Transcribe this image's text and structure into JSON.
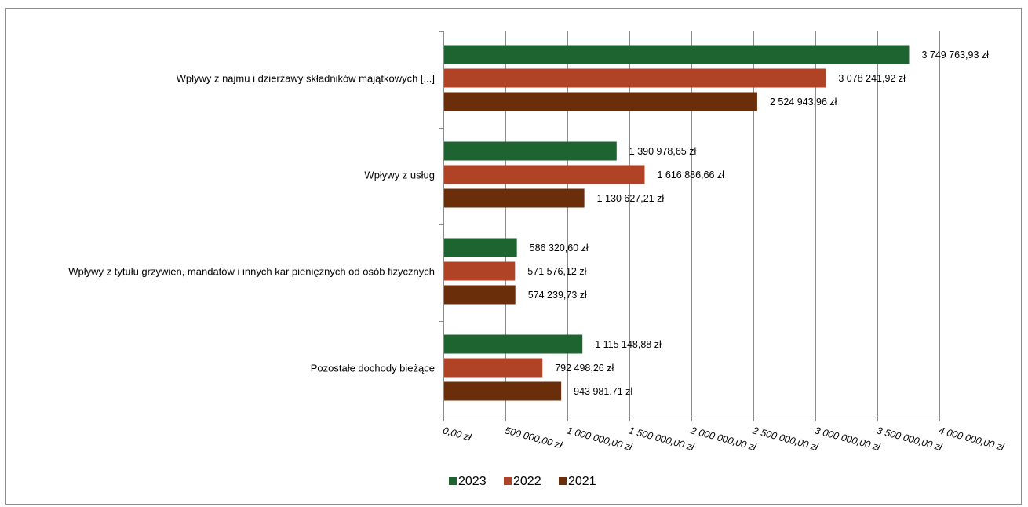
{
  "chart_data": {
    "type": "bar",
    "orientation": "horizontal",
    "title": "",
    "xlabel": "",
    "ylabel": "",
    "categories": [
      "Wpływy z najmu i dzierżawy składników majątkowych [...]",
      "Wpływy z usług",
      "Wpływy z tytułu grzywien, mandatów i innych kar pieniężnych od osób fizycznych",
      "Pozostałe dochody bieżące"
    ],
    "series": [
      {
        "name": "2023",
        "color": "#1e6430",
        "values": [
          3749763.93,
          1390978.65,
          586320.6,
          1115148.88
        ],
        "labels": [
          "3 749 763,93 zł",
          "1 390 978,65 zł",
          "586 320,60 zł",
          "1 115 148,88 zł"
        ]
      },
      {
        "name": "2022",
        "color": "#b04325",
        "values": [
          3078241.92,
          1616886.66,
          571576.12,
          792498.26
        ],
        "labels": [
          "3 078 241,92 zł",
          "1 616 886,66 zł",
          "571 576,12 zł",
          "792 498,26 zł"
        ]
      },
      {
        "name": "2021",
        "color": "#6a2f0a",
        "values": [
          2524943.96,
          1130627.21,
          574239.73,
          943981.71
        ],
        "labels": [
          "2 524 943,96 zł",
          "1 130 627,21 zł",
          "574 239,73 zł",
          "943 981,71 zł"
        ]
      }
    ],
    "xlim": [
      0,
      4000000
    ],
    "xticks": [
      0,
      500000,
      1000000,
      1500000,
      2000000,
      2500000,
      3000000,
      3500000,
      4000000
    ],
    "xtick_labels": [
      "0,00 zł",
      "500 000,00 zł",
      "1 000 000,00 zł",
      "1 500 000,00 zł",
      "2 000 000,00 zł",
      "2 500 000,00 zł",
      "3 000 000,00 zł",
      "3 500 000,00 zł",
      "4 000 000,00 zł"
    ],
    "grid": true,
    "legend_position": "bottom"
  }
}
